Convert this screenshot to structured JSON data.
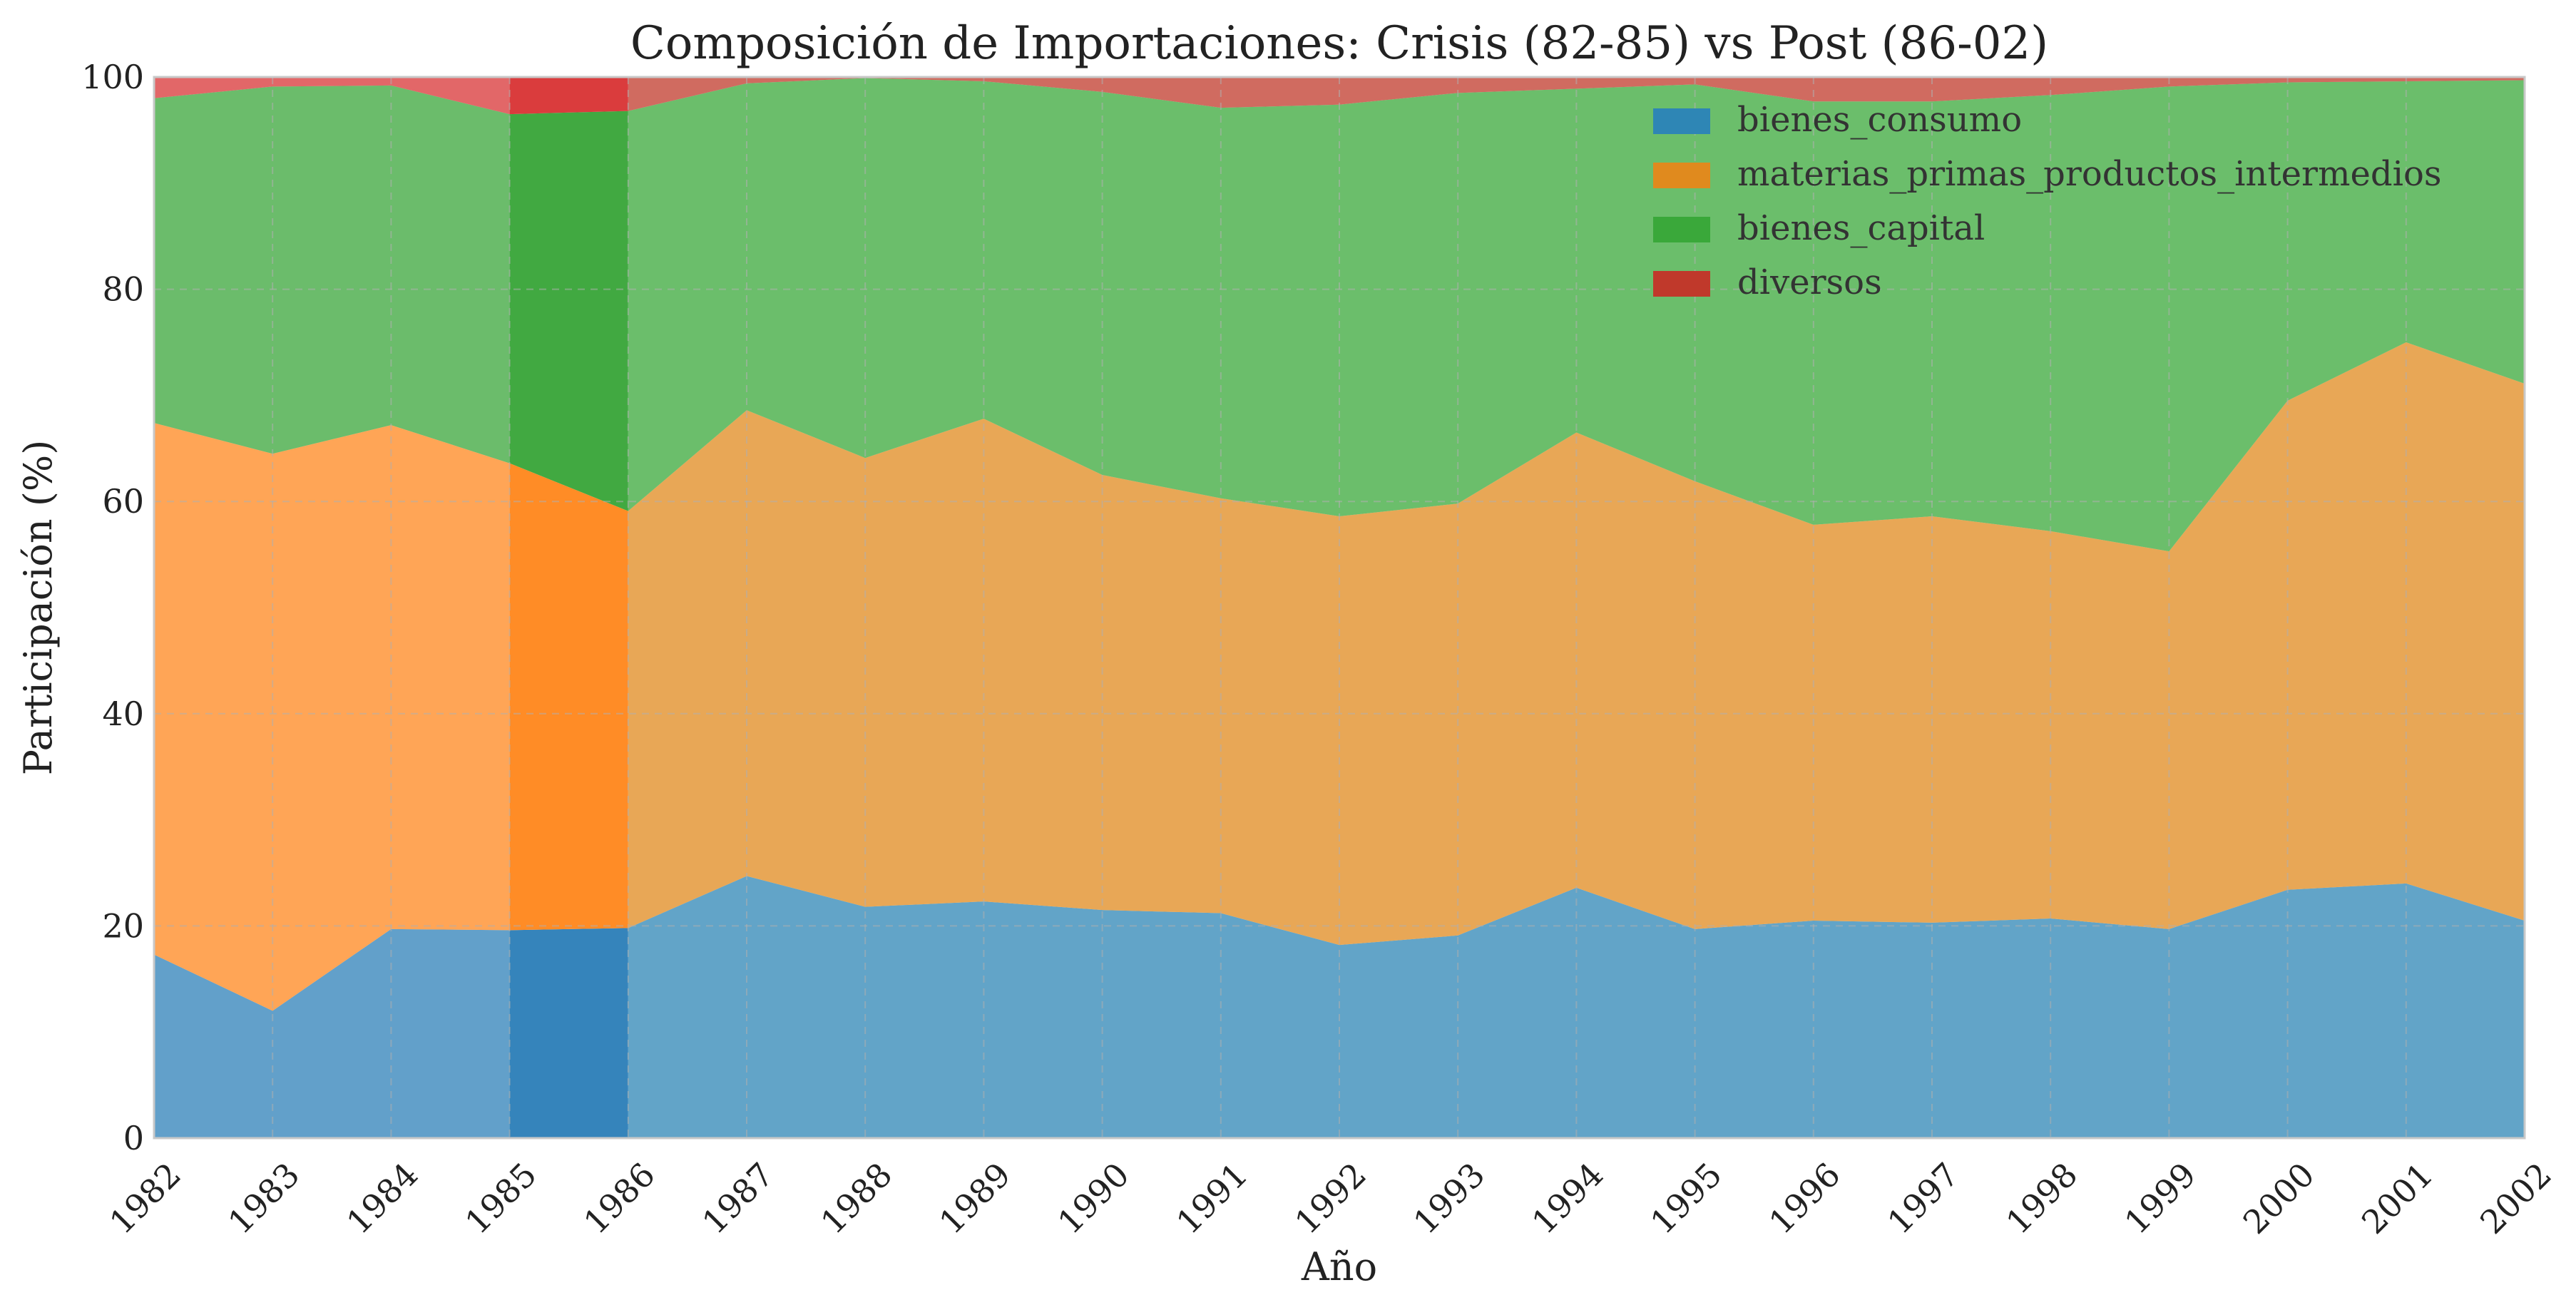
{
  "chart_data": {
    "type": "area",
    "title": "Composición de Importaciones: Crisis (82-85) vs Post (86-02)",
    "xlabel": "Año",
    "ylabel": "Participación (%)",
    "ylim": [
      0,
      100
    ],
    "yticks": [
      0,
      20,
      40,
      60,
      80,
      100
    ],
    "grid": true,
    "legend_position": "top-right",
    "x": [
      "1982",
      "1983",
      "1984",
      "1985",
      "1986",
      "1987",
      "1988",
      "1989",
      "1990",
      "1991",
      "1992",
      "1993",
      "1994",
      "1995",
      "1996",
      "1997",
      "1998",
      "1999",
      "2000",
      "2001",
      "2002"
    ],
    "periods": [
      {
        "range": [
          "1982",
          "1985"
        ],
        "opacity": 0.7
      },
      {
        "range": [
          "1985",
          "1986"
        ],
        "opacity": 0.9
      },
      {
        "range": [
          "1986",
          "2002"
        ],
        "opacity": 0.75
      }
    ],
    "series": [
      {
        "name": "bienes_consumo",
        "color": "#2e86b5",
        "period_colors": [
          "#1f77b4",
          "#1f77b4",
          "#2e86b5"
        ],
        "values": [
          17.3,
          12.0,
          19.7,
          19.6,
          19.8,
          24.7,
          21.8,
          22.3,
          21.5,
          21.2,
          18.2,
          19.1,
          23.6,
          19.7,
          20.5,
          20.3,
          20.7,
          19.7,
          23.4,
          24.0,
          20.5
        ]
      },
      {
        "name": "materias_primas_productos_intermedios",
        "color": "#e08a1e",
        "period_colors": [
          "#ff7f0e",
          "#ff7f0e",
          "#e08a1e"
        ],
        "values": [
          50.1,
          52.5,
          47.5,
          44.0,
          39.3,
          43.9,
          42.3,
          45.5,
          41.0,
          39.1,
          40.4,
          40.7,
          42.9,
          42.2,
          37.3,
          38.3,
          36.5,
          35.6,
          46.1,
          51.0,
          50.6
        ]
      },
      {
        "name": "bienes_capital",
        "color": "#3aa83a",
        "period_colors": [
          "#2ca02c",
          "#2ca02c",
          "#3aa83a"
        ],
        "values": [
          30.6,
          34.6,
          32.0,
          32.9,
          37.7,
          30.8,
          35.8,
          31.8,
          36.1,
          36.8,
          38.8,
          38.7,
          32.4,
          37.4,
          39.9,
          39.1,
          41.1,
          43.8,
          30.0,
          24.6,
          28.6
        ]
      },
      {
        "name": "diversos",
        "color": "#c0392b",
        "period_colors": [
          "#d62728",
          "#d62728",
          "#c0392b"
        ],
        "values": [
          2.0,
          0.9,
          0.8,
          3.5,
          3.2,
          0.6,
          0.1,
          0.4,
          1.4,
          2.9,
          2.6,
          1.5,
          1.1,
          0.7,
          2.3,
          2.3,
          1.7,
          0.9,
          0.5,
          0.4,
          0.3
        ]
      }
    ]
  }
}
